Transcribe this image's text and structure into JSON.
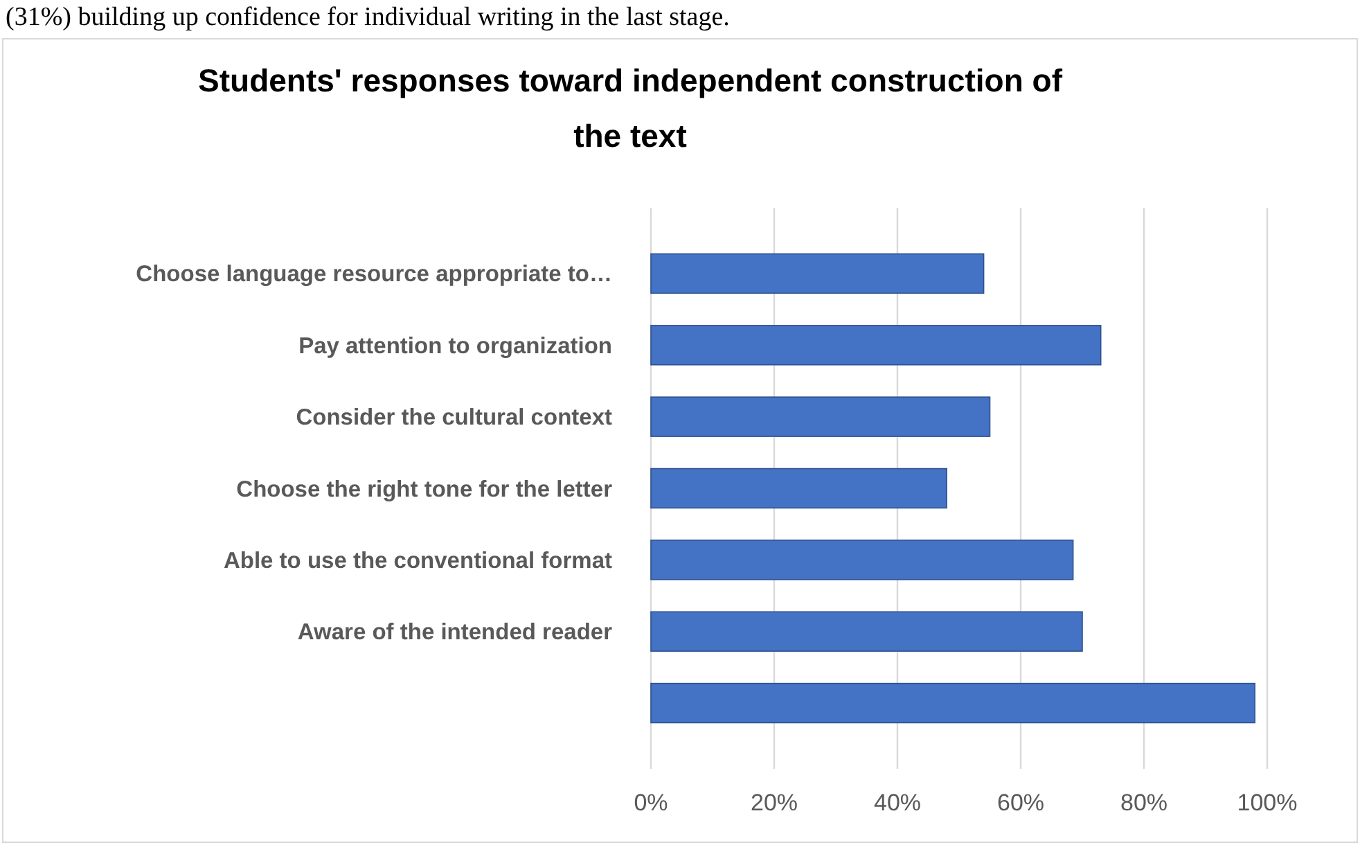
{
  "chart_data": {
    "type": "bar",
    "orientation": "horizontal",
    "title": "Students' responses toward independent construction of the text",
    "categories": [
      "Choose language resource appropriate to…",
      "Pay attention to organization",
      "Consider the cultural context",
      "Choose the right tone for the letter",
      "Able to use the conventional format",
      "Aware of the intended reader",
      null
    ],
    "values": [
      54,
      73,
      55,
      48,
      68.5,
      70,
      98
    ],
    "color": "#4472c4",
    "xlim": [
      0,
      100
    ],
    "xticks": [
      {
        "value": 0,
        "label": "0%"
      },
      {
        "value": 20,
        "label": "20%"
      },
      {
        "value": 40,
        "label": "40%"
      },
      {
        "value": 60,
        "label": "60%"
      },
      {
        "value": 80,
        "label": "80%"
      },
      {
        "value": 100,
        "label": "100%"
      }
    ],
    "grid": "x",
    "annotations": [
      "(31%) building up confidence for individual writing in the last stage."
    ]
  }
}
